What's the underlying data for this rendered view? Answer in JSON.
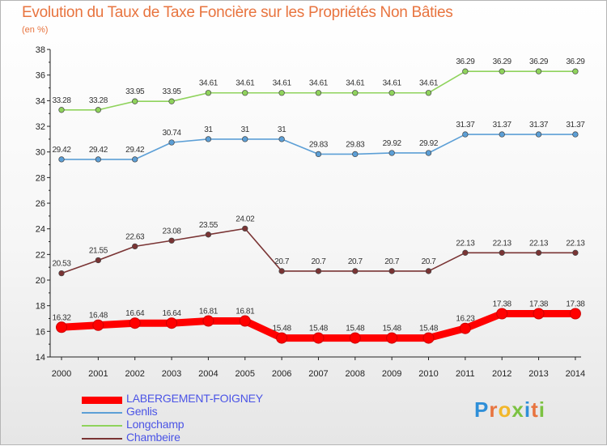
{
  "chart_data": {
    "type": "line",
    "title": "Evolution du Taux de Taxe Foncière sur les Propriétés Non Bâties",
    "unit_label": "(en %)",
    "x": [
      "2000",
      "2001",
      "2002",
      "2003",
      "2004",
      "2005",
      "2006",
      "2007",
      "2008",
      "2009",
      "2010",
      "2011",
      "2012",
      "2013",
      "2014"
    ],
    "ylim": [
      14,
      38
    ],
    "yticks": [
      "14",
      "16",
      "18",
      "20",
      "22",
      "24",
      "26",
      "28",
      "30",
      "32",
      "34",
      "36",
      "38"
    ],
    "grid": false,
    "legend_position": "bottom-left",
    "series": [
      {
        "name": "LABERGEMENT-FOIGNEY",
        "color": "#ff0000",
        "values": [
          16.32,
          16.48,
          16.64,
          16.64,
          16.81,
          16.81,
          15.48,
          15.48,
          15.48,
          15.48,
          15.48,
          16.23,
          17.38,
          17.38,
          17.38
        ],
        "labels": [
          "16.32",
          "16.48",
          "16.64",
          "16.64",
          "16.81",
          "16.81",
          "15.48",
          "15.48",
          "15.48",
          "15.48",
          "15.48",
          "16.23",
          "17.38",
          "17.38",
          "17.38"
        ]
      },
      {
        "name": "Genlis",
        "color": "#5c9fd6",
        "values": [
          29.42,
          29.42,
          29.42,
          30.74,
          31,
          31,
          31,
          29.83,
          29.83,
          29.92,
          29.92,
          31.37,
          31.37,
          31.37,
          31.37
        ],
        "labels": [
          "29.42",
          "29.42",
          "29.42",
          "30.74",
          "31",
          "31",
          "31",
          "29.83",
          "29.83",
          "29.92",
          "29.92",
          "31.37",
          "31.37",
          "31.37",
          "31.37"
        ]
      },
      {
        "name": "Longchamp",
        "color": "#8fd35c",
        "values": [
          33.28,
          33.28,
          33.95,
          33.95,
          34.61,
          34.61,
          34.61,
          34.61,
          34.61,
          34.61,
          34.61,
          36.29,
          36.29,
          36.29,
          36.29
        ],
        "labels": [
          "33.28",
          "33.28",
          "33.95",
          "33.95",
          "34.61",
          "34.61",
          "34.61",
          "34.61",
          "34.61",
          "34.61",
          "34.61",
          "36.29",
          "36.29",
          "36.29",
          "36.29"
        ]
      },
      {
        "name": "Chambeire",
        "color": "#7a3434",
        "values": [
          20.53,
          21.55,
          22.63,
          23.08,
          23.55,
          24.02,
          20.7,
          20.7,
          20.7,
          20.7,
          20.7,
          22.13,
          22.13,
          22.13,
          22.13
        ],
        "labels": [
          "20.53",
          "21.55",
          "22.63",
          "23.08",
          "23.55",
          "24.02",
          "20.7",
          "20.7",
          "20.7",
          "20.7",
          "20.7",
          "22.13",
          "22.13",
          "22.13",
          "22.13"
        ]
      }
    ]
  },
  "legend": {
    "items": [
      {
        "name": "LABERGEMENT-FOIGNEY",
        "color": "#ff0000",
        "thickness": 9
      },
      {
        "name": "Genlis",
        "color": "#5c9fd6",
        "thickness": 2
      },
      {
        "name": "Longchamp",
        "color": "#8fd35c",
        "thickness": 2
      },
      {
        "name": "Chambeire",
        "color": "#7a3434",
        "thickness": 2
      }
    ]
  },
  "logo": {
    "text": "Proxiti"
  }
}
